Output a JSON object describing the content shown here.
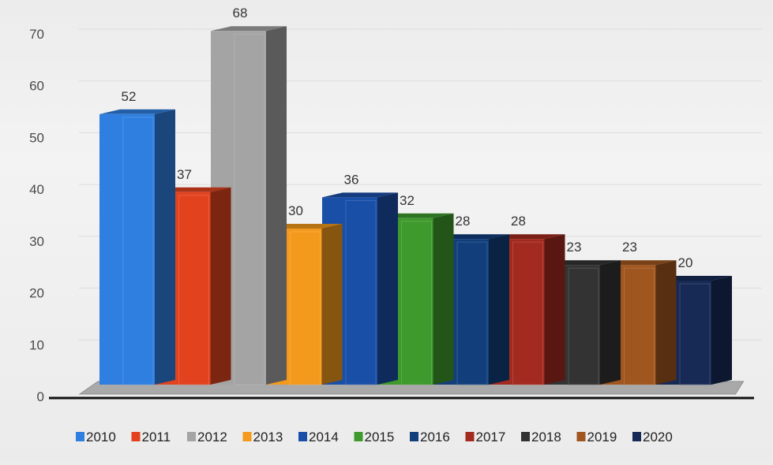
{
  "chart_data": {
    "type": "bar",
    "categories": [
      "2010",
      "2011",
      "2012",
      "2013",
      "2014",
      "2015",
      "2016",
      "2017",
      "2018",
      "2019",
      "2020"
    ],
    "values": [
      52,
      37,
      68,
      30,
      36,
      32,
      28,
      28,
      23,
      23,
      20
    ],
    "value_labels": [
      "52",
      "37",
      "68",
      "30",
      "36",
      "32",
      "28",
      "28",
      "23",
      "23",
      "20"
    ],
    "series_colors": [
      "#2f7fe0",
      "#e2431e",
      "#a4a4a4",
      "#f39a1c",
      "#1a4fa8",
      "#3f9a2e",
      "#123f7c",
      "#a32a1f",
      "#333333",
      "#a0561f",
      "#172a55"
    ],
    "yticks": [
      "0",
      "10",
      "20",
      "30",
      "40",
      "50",
      "60",
      "70"
    ],
    "ylim": [
      0,
      70
    ],
    "legend_position": "bottom",
    "style": "3d-clustered-bar",
    "grid": true
  }
}
